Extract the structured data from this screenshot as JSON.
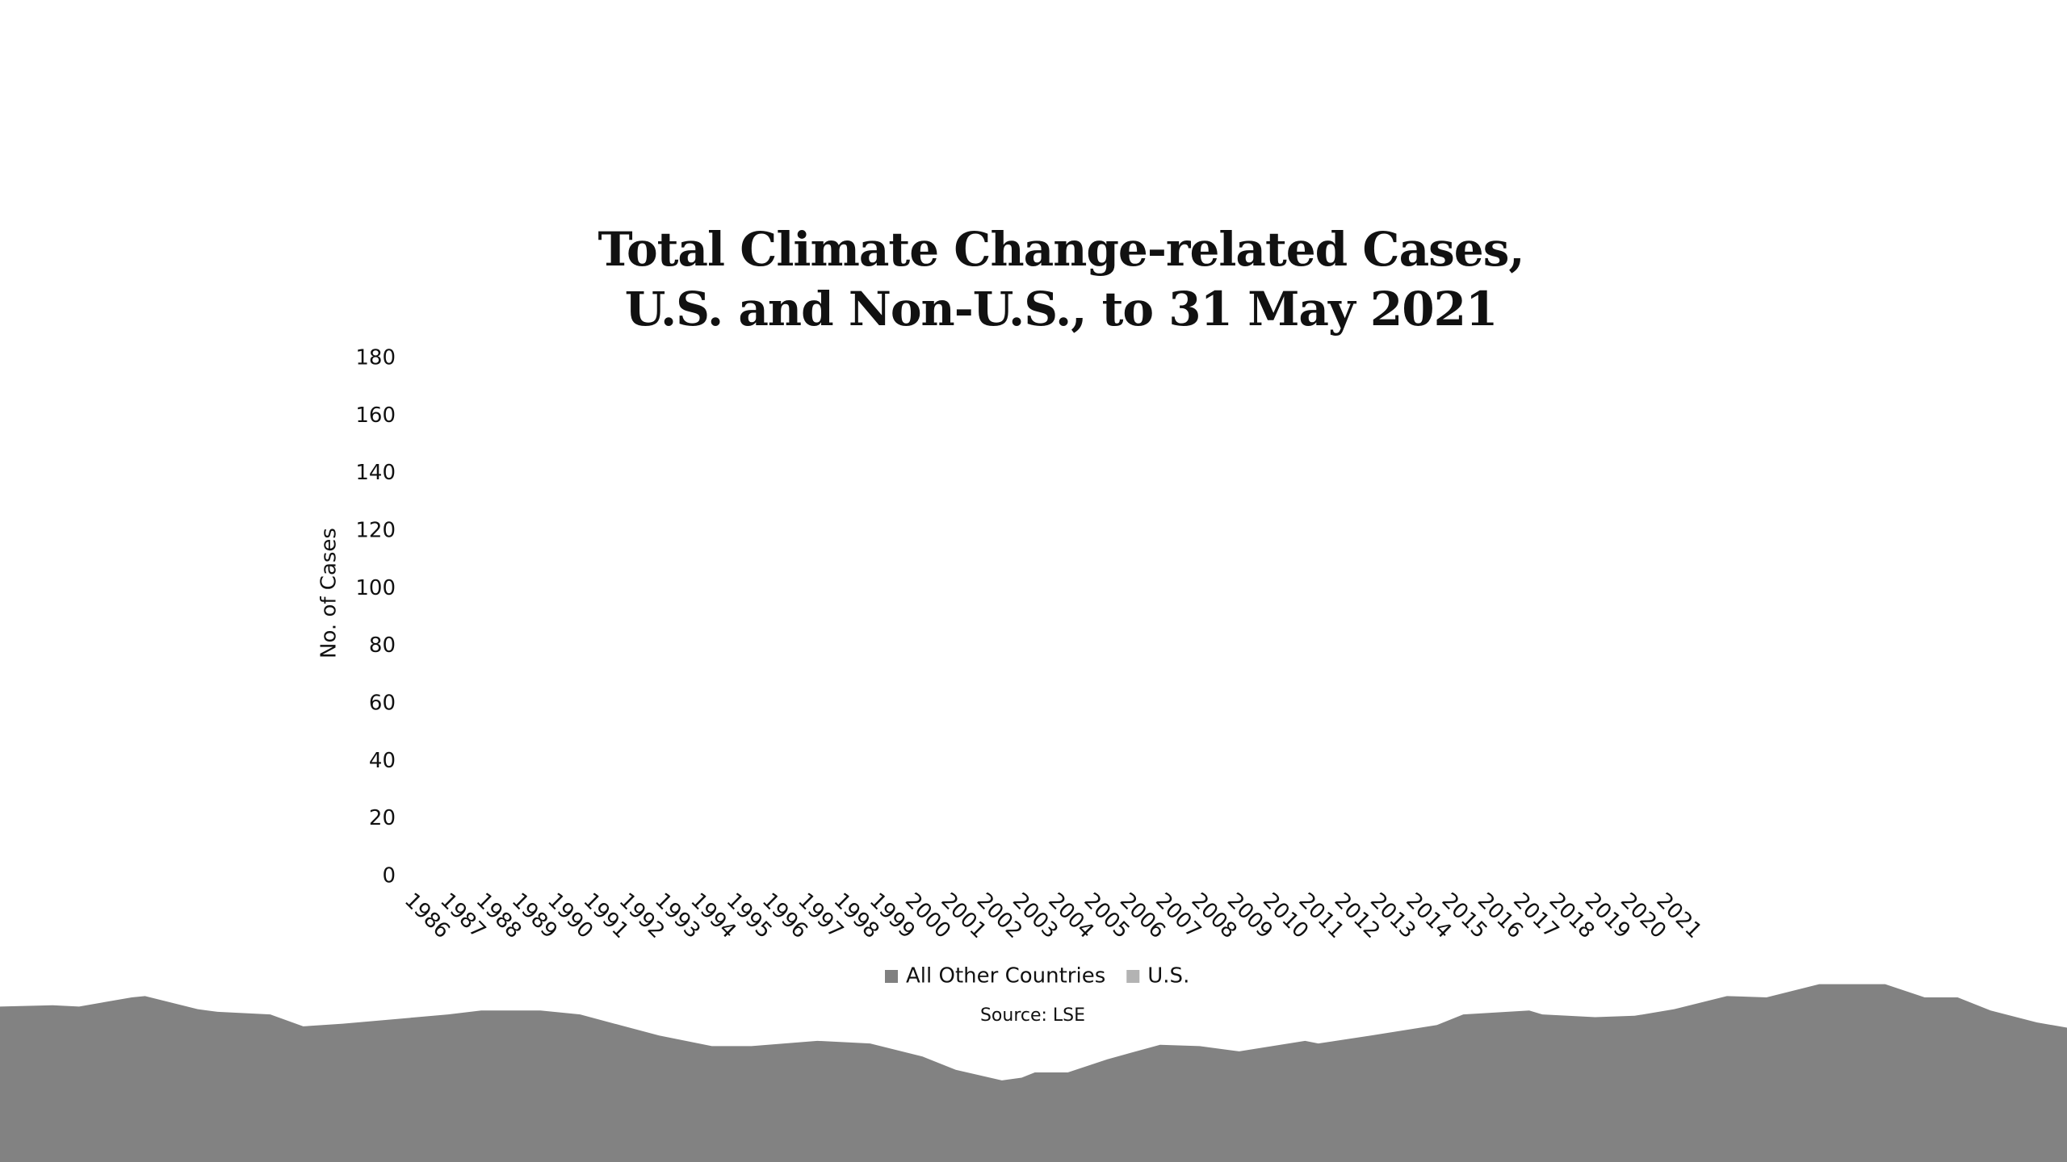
{
  "chart_data": {
    "type": "bar",
    "stacked": true,
    "title": "Total Climate Change-related Cases, U.S. and Non-U.S., to 31 May 2021",
    "y_label": "No. of Cases",
    "source": "Source: LSE",
    "categories": [
      "1986",
      "1987",
      "1988",
      "1989",
      "1990",
      "1991",
      "1992",
      "1993",
      "1994",
      "1995",
      "1996",
      "1997",
      "1998",
      "1999",
      "2000",
      "2001",
      "2002",
      "2003",
      "2004",
      "2005",
      "2006",
      "2007",
      "2008",
      "2009",
      "2010",
      "2011",
      "2012",
      "2013",
      "2014",
      "2015",
      "2016",
      "2017",
      "2018",
      "2019",
      "2020",
      "2021"
    ],
    "series": [
      {
        "name": "All Other Countries",
        "color": "#808080",
        "values": [
          0,
          0,
          0,
          0,
          0,
          0,
          0,
          0,
          0,
          0,
          0,
          0,
          0,
          0,
          0,
          0,
          0,
          0,
          0,
          0,
          0,
          0,
          0,
          0,
          0,
          0,
          0,
          0,
          0,
          0,
          0,
          0,
          0,
          0,
          0,
          0
        ]
      },
      {
        "name": "U.S.",
        "color": "#b3b3b3",
        "values": [
          0,
          0,
          0,
          0,
          0,
          0,
          0,
          0,
          0,
          0,
          0,
          0,
          0,
          0,
          0,
          0,
          0,
          0,
          0,
          0,
          0,
          0,
          0,
          0,
          0,
          0,
          0,
          0,
          0,
          0,
          0,
          0,
          0,
          0,
          0,
          0
        ]
      }
    ],
    "ylim": [
      0,
      180
    ],
    "yticks": [
      0,
      20,
      40,
      60,
      80,
      100,
      120,
      140,
      160,
      180
    ]
  }
}
